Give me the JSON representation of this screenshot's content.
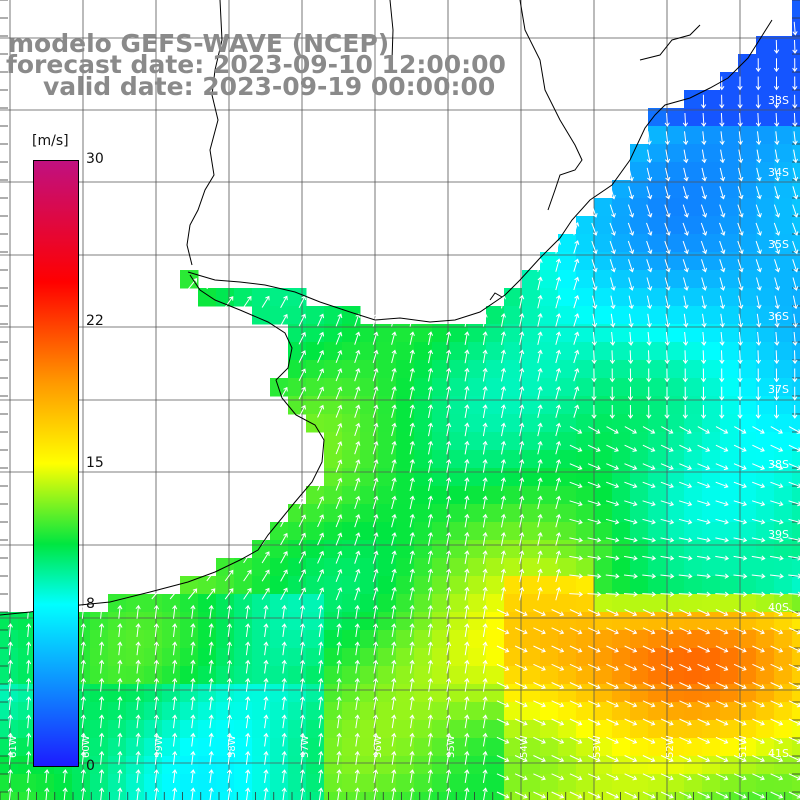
{
  "header": {
    "model_line": "modelo GEFS-WAVE (NCEP)",
    "forecast_line": "forecast date: 2023-09-10 12:00:00",
    "valid_line": "valid date: 2023-09-19 00:00:00"
  },
  "colorbar": {
    "units": "[m/s]",
    "ticks": [
      "30",
      "22",
      "15",
      "8",
      "0"
    ],
    "tick_values": [
      30,
      22,
      15,
      8,
      0
    ],
    "min": 0,
    "max": 30,
    "stops": [
      {
        "v": 0,
        "color": "#1c1cff"
      },
      {
        "v": 8,
        "color": "#00ffff"
      },
      {
        "v": 11,
        "color": "#00e640"
      },
      {
        "v": 15,
        "color": "#ffff00"
      },
      {
        "v": 19,
        "color": "#ff9900"
      },
      {
        "v": 24,
        "color": "#ff0000"
      },
      {
        "v": 30,
        "color": "#c01080"
      }
    ]
  },
  "axes": {
    "lat_labels": [
      "33S",
      "34S",
      "35S",
      "36S",
      "37S",
      "38S",
      "39S",
      "40S",
      "41S"
    ],
    "lon_labels": [
      "61W",
      "60W",
      "59W",
      "58W",
      "57W",
      "56W",
      "55W",
      "54W",
      "53W",
      "52W",
      "51W"
    ]
  },
  "map": {
    "extent": {
      "lon_min": -61.2,
      "lon_max": -50.8,
      "lat_min": -41.7,
      "lat_max": -31.2
    },
    "colors": {
      "land": "#ffffff",
      "coast": "#000000",
      "grid": "#555555",
      "arrow": "#ffffff"
    }
  }
}
